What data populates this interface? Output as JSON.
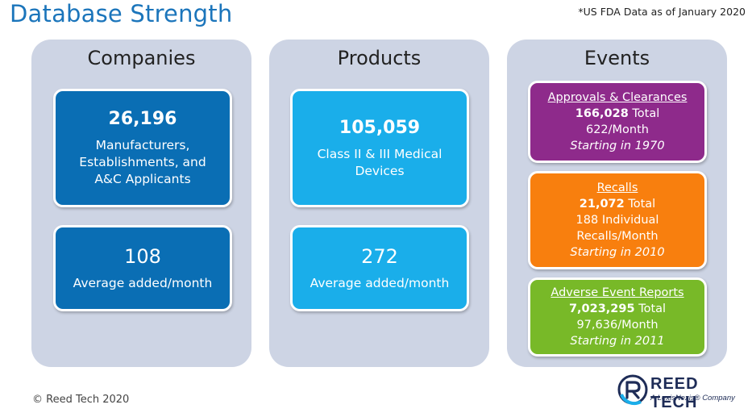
{
  "header": {
    "title": "Database Strength",
    "note": "*US FDA Data as of January 2020"
  },
  "companies": {
    "title": "Companies",
    "total_value": "26,196",
    "total_desc": "Manufacturers, Establishments, and A&C Applicants",
    "avg_value": "108",
    "avg_desc": "Average added/month"
  },
  "products": {
    "title": "Products",
    "total_value": "105,059",
    "total_desc": "Class II & III Medical Devices",
    "avg_value": "272",
    "avg_desc": "Average added/month"
  },
  "events": {
    "title": "Events",
    "approvals": {
      "label": "Approvals & Clearances",
      "total_value": "166,028",
      "total_word": "Total",
      "rate": "622/Month",
      "since": "Starting in 1970"
    },
    "recalls": {
      "label": "Recalls",
      "total_value": "21,072",
      "total_word": "Total",
      "rate_line1": "188 Individual",
      "rate_line2": "Recalls/Month",
      "since": "Starting in 2010"
    },
    "adverse": {
      "label": "Adverse Event Reports",
      "total_value": "7,023,295",
      "total_word": "Total",
      "rate": "97,636/Month",
      "since": "Starting in 2011"
    }
  },
  "footer": {
    "copyright": "© Reed Tech 2020"
  },
  "logo": {
    "name": "REED TECH",
    "tagline": "A LexisNexis® Company"
  },
  "colors": {
    "title_blue": "#1b75bb",
    "panel_bg": "#cdd4e4",
    "companies_box": "#0a6eb4",
    "products_box": "#1aaeea",
    "approvals_box": "#8e2a8b",
    "recalls_box": "#f87f0e",
    "adverse_box": "#78b928"
  }
}
